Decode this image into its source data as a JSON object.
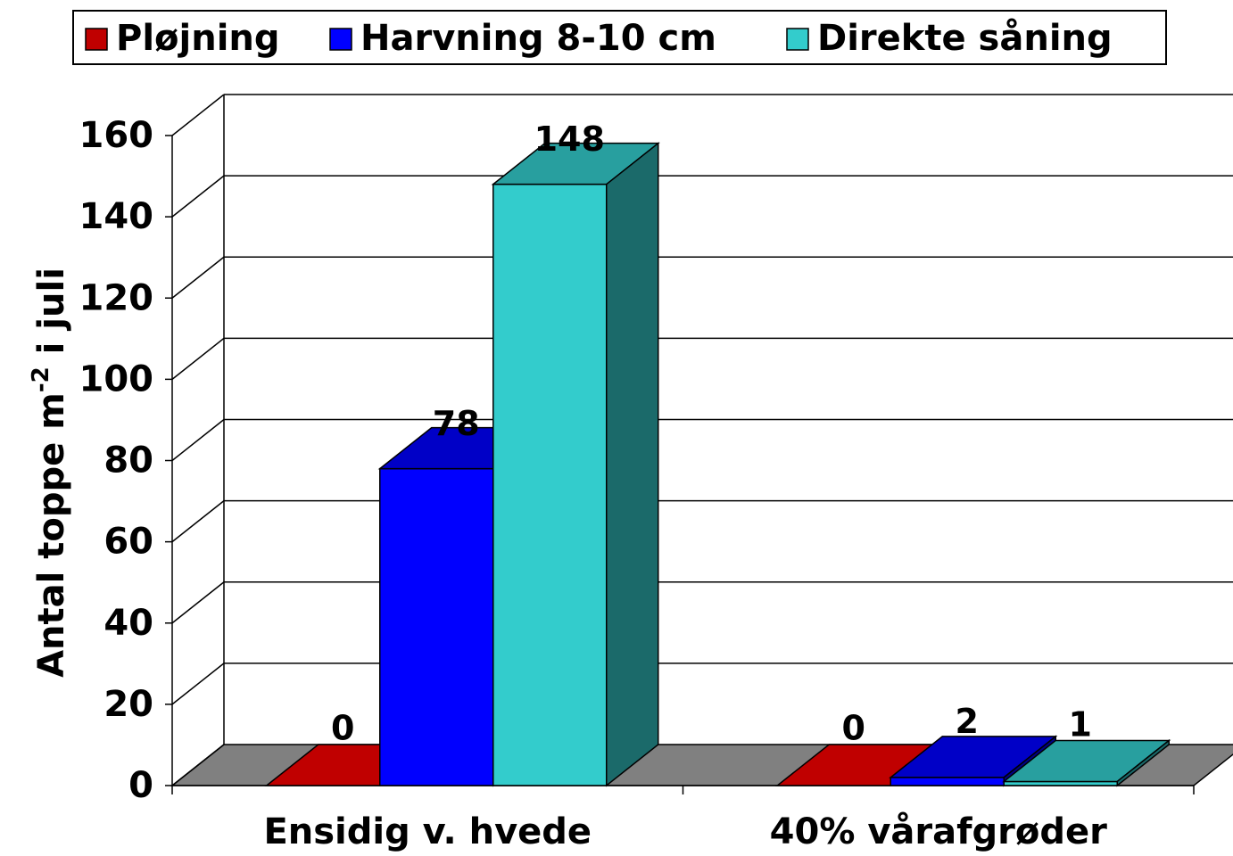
{
  "chart_data": {
    "type": "bar3d",
    "y_label": [
      "Antal toppe m",
      "-2",
      " i juli"
    ],
    "categories": [
      "Ensidig v. hvede",
      "40% vårafgrøder"
    ],
    "series": [
      {
        "name": "Pløjning",
        "color": "#c00000",
        "values": [
          0,
          0
        ]
      },
      {
        "name": "Harvning 8-10 cm",
        "color": "#0000ff",
        "values": [
          78,
          2
        ]
      },
      {
        "name": "Direkte såning",
        "color": "#33cccc",
        "values": [
          148,
          1
        ]
      }
    ],
    "ylim": [
      0,
      160
    ],
    "yticks": [
      0,
      20,
      40,
      60,
      80,
      100,
      120,
      140,
      160
    ],
    "grid": true
  }
}
